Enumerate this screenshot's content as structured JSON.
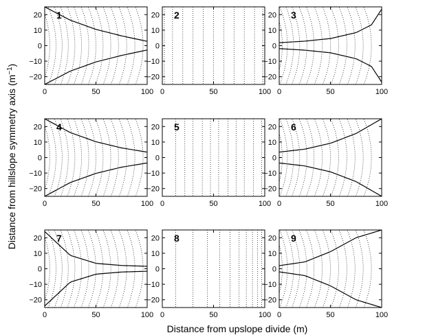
{
  "figure": {
    "xlabel": "Distance from upslope divide (m)",
    "ylabel_main": "Distance from hillslope symmetry axis (m",
    "ylabel_sup": "−1",
    "ylabel_close": ")"
  },
  "chart_data": {
    "type": "line",
    "layout": "3x3 small multiples",
    "xlim": [
      0,
      100
    ],
    "ylim": [
      -25,
      25
    ],
    "xticks": [
      0,
      50,
      100
    ],
    "yticks": [
      20,
      10,
      0,
      -10,
      -20
    ],
    "grid": false,
    "xlabel": "Distance from upslope divide (m)",
    "ylabel": "Distance from hillslope symmetry axis (m−1)",
    "panels": [
      {
        "label": "1",
        "boundary_half_width": {
          "x": [
            0,
            25,
            50,
            75,
            100
          ],
          "y": [
            25,
            16.4,
            10.5,
            6.3,
            2.8
          ]
        },
        "contour_x_at_axis": [
          5,
          11,
          17,
          23,
          29.5,
          36,
          43,
          50,
          57,
          64.5,
          72,
          80,
          88,
          96
        ],
        "contour_curvature": "convex"
      },
      {
        "label": "2",
        "boundary_half_width": null,
        "contour_x_at_axis": [
          2,
          10,
          20,
          30,
          40,
          50,
          60,
          70,
          80,
          90,
          98
        ],
        "contour_curvature": "straight"
      },
      {
        "label": "3",
        "boundary_half_width": {
          "x": [
            0,
            25,
            50,
            75,
            90,
            100
          ],
          "y": [
            1.9,
            2.9,
            4.6,
            8.4,
            13.4,
            23.5
          ]
        },
        "contour_x_at_axis": [
          3,
          8,
          14,
          20,
          27,
          34,
          42,
          50,
          58,
          66,
          74,
          82,
          90
        ],
        "contour_curvature": "convex"
      },
      {
        "label": "4",
        "boundary_half_width": {
          "x": [
            0,
            25,
            50,
            75,
            100
          ],
          "y": [
            25,
            16.1,
            10.2,
            6.2,
            3.5
          ]
        },
        "contour_x_at_axis": [
          5,
          11,
          17,
          23,
          29.5,
          36,
          43,
          50,
          57,
          64.5,
          72,
          80,
          88,
          96
        ],
        "contour_curvature": "convex"
      },
      {
        "label": "5",
        "boundary_half_width": null,
        "contour_x_at_axis": [
          13,
          22,
          30,
          39,
          47,
          55,
          64,
          72,
          80,
          89,
          97
        ],
        "contour_curvature": "straight"
      },
      {
        "label": "6",
        "boundary_half_width": {
          "x": [
            0,
            25,
            50,
            75,
            100
          ],
          "y": [
            3.5,
            5.4,
            9.2,
            15.5,
            25
          ]
        },
        "contour_x_at_axis": [
          3,
          8,
          14,
          20,
          27,
          34,
          42,
          50,
          58,
          66,
          74,
          82,
          90
        ],
        "contour_curvature": "convex"
      },
      {
        "label": "7",
        "boundary_half_width": {
          "x": [
            0,
            25,
            50,
            75,
            100
          ],
          "y": [
            24,
            8.6,
            3.5,
            2.1,
            1.6
          ]
        },
        "contour_x_at_axis": [
          5,
          11,
          17,
          23,
          29.5,
          36,
          43,
          50,
          57,
          64.5,
          72,
          80,
          88,
          96
        ],
        "contour_curvature": "convex"
      },
      {
        "label": "8",
        "boundary_half_width": null,
        "contour_x_at_axis": [
          13,
          30,
          44,
          56,
          66,
          75,
          82,
          88,
          93,
          97,
          100
        ],
        "contour_curvature": "straight"
      },
      {
        "label": "9",
        "boundary_half_width": {
          "x": [
            0,
            25,
            50,
            75,
            100
          ],
          "y": [
            2,
            4.4,
            11,
            20,
            25
          ]
        },
        "contour_x_at_axis": [
          3,
          8,
          14,
          20,
          27,
          34,
          42,
          50,
          58,
          66,
          74,
          82,
          90
        ],
        "contour_curvature": "convex"
      }
    ]
  }
}
